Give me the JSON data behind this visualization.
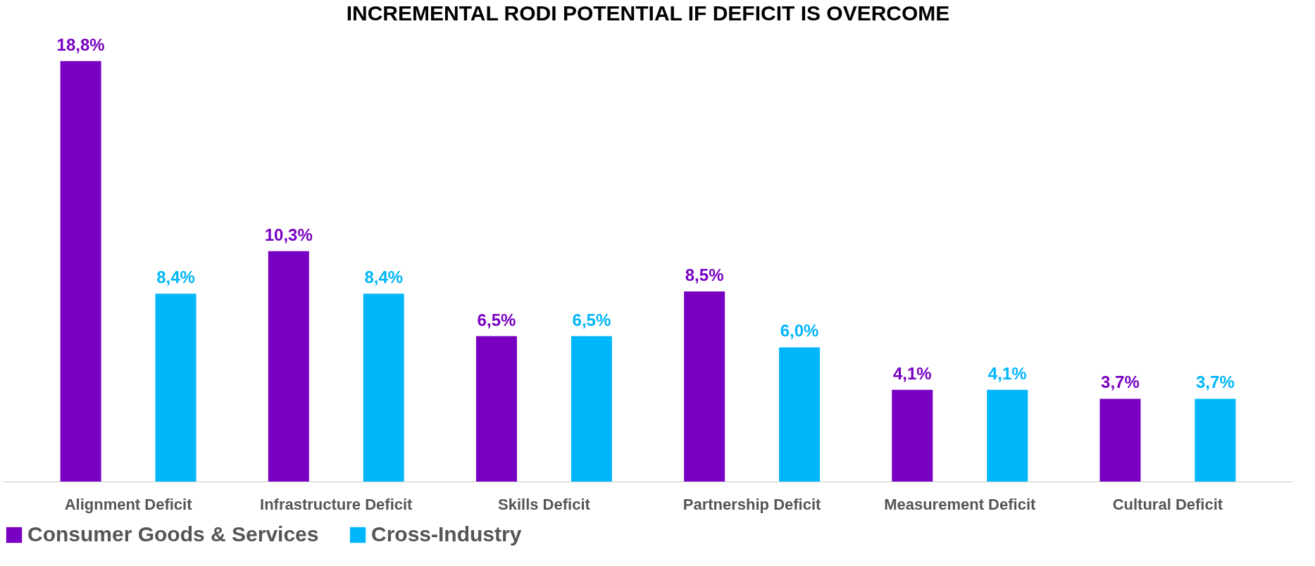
{
  "chart_data": {
    "type": "bar",
    "title": "INCREMENTAL RODI POTENTIAL IF DEFICIT IS OVERCOME",
    "categories": [
      "Alignment Deficit",
      "Infrastructure Deficit",
      "Skills Deficit",
      "Partnership Deficit",
      "Measurement Deficit",
      "Cultural Deficit"
    ],
    "series": [
      {
        "name": "Consumer Goods & Services",
        "color": "#7800c2",
        "values": [
          18.8,
          10.3,
          6.5,
          8.5,
          4.1,
          3.7
        ],
        "value_labels": [
          "18,8%",
          "10,3%",
          "6,5%",
          "8,5%",
          "4,1%",
          "3,7%"
        ]
      },
      {
        "name": "Cross-Industry",
        "color": "#00b6fb",
        "values": [
          8.4,
          8.4,
          6.5,
          6.0,
          4.1,
          3.7
        ],
        "value_labels": [
          "8,4%",
          "8,4%",
          "6,5%",
          "6,0%",
          "4,1%",
          "3,7%"
        ]
      }
    ],
    "legend": "bottom",
    "grid": false
  }
}
